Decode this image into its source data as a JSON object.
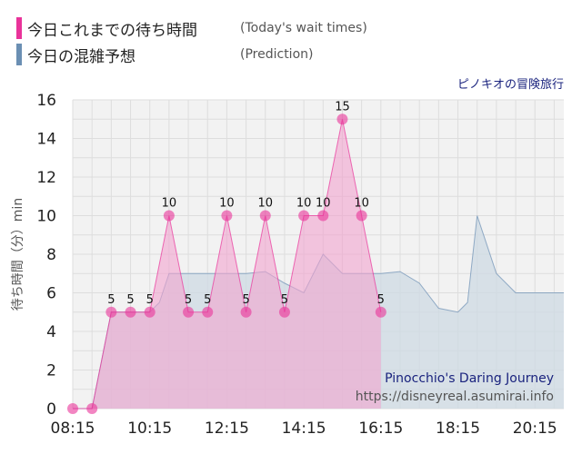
{
  "legend": {
    "actual_label": "今日これまでの待ち時間",
    "actual_sub": "(Today's wait times)",
    "predicted_label": "今日の混雑予想",
    "predicted_sub": "(Prediction)"
  },
  "colors": {
    "actual": "#e9339a",
    "actual_fill": "#f2a3cf",
    "predicted": "#6b8fb3",
    "predicted_fill": "#cdd9e3"
  },
  "attraction_ja": "ピノキオの冒険旅行",
  "credit": {
    "attraction_en": "Pinocchio's Daring Journey",
    "url": "https://disneyreal.asumirai.info"
  },
  "chart_data": {
    "type": "area",
    "ylabel": "待ち時間（分）min",
    "ylim": [
      0,
      16
    ],
    "yticks": [
      "0",
      "2",
      "4",
      "6",
      "8",
      "10",
      "12",
      "14",
      "16"
    ],
    "xlim": [
      "08:15",
      "21:00"
    ],
    "xticks": [
      "08:15",
      "10:15",
      "12:15",
      "14:15",
      "16:15",
      "18:15",
      "20:15"
    ],
    "grid": true,
    "series": [
      {
        "key": "actual",
        "points": [
          {
            "x": "08:15",
            "y": 0
          },
          {
            "x": "08:45",
            "y": 0
          },
          {
            "x": "09:15",
            "y": 5,
            "label": "5"
          },
          {
            "x": "09:45",
            "y": 5,
            "label": "5"
          },
          {
            "x": "10:15",
            "y": 5,
            "label": "5"
          },
          {
            "x": "10:45",
            "y": 10,
            "label": "10"
          },
          {
            "x": "11:15",
            "y": 5,
            "label": "5"
          },
          {
            "x": "11:45",
            "y": 5,
            "label": "5"
          },
          {
            "x": "12:15",
            "y": 10,
            "label": "10"
          },
          {
            "x": "12:45",
            "y": 5,
            "label": "5"
          },
          {
            "x": "13:15",
            "y": 10,
            "label": "10"
          },
          {
            "x": "13:45",
            "y": 5,
            "label": "5"
          },
          {
            "x": "14:15",
            "y": 10,
            "label": "10"
          },
          {
            "x": "14:45",
            "y": 10,
            "label": "10"
          },
          {
            "x": "15:15",
            "y": 15,
            "label": "15"
          },
          {
            "x": "15:45",
            "y": 10,
            "label": "10"
          },
          {
            "x": "16:15",
            "y": 5,
            "label": "5"
          }
        ]
      },
      {
        "key": "predicted",
        "points": [
          {
            "x": "08:15",
            "y": 0
          },
          {
            "x": "08:45",
            "y": 0
          },
          {
            "x": "09:15",
            "y": 5
          },
          {
            "x": "09:45",
            "y": 5
          },
          {
            "x": "10:15",
            "y": 5
          },
          {
            "x": "10:30",
            "y": 5.5
          },
          {
            "x": "10:45",
            "y": 7
          },
          {
            "x": "11:15",
            "y": 7
          },
          {
            "x": "11:45",
            "y": 7
          },
          {
            "x": "12:15",
            "y": 7
          },
          {
            "x": "12:45",
            "y": 7
          },
          {
            "x": "13:15",
            "y": 7.1
          },
          {
            "x": "13:45",
            "y": 6.5
          },
          {
            "x": "14:15",
            "y": 6
          },
          {
            "x": "14:45",
            "y": 8
          },
          {
            "x": "15:15",
            "y": 7
          },
          {
            "x": "15:45",
            "y": 7
          },
          {
            "x": "16:15",
            "y": 7
          },
          {
            "x": "16:45",
            "y": 7.1
          },
          {
            "x": "17:15",
            "y": 6.5
          },
          {
            "x": "17:45",
            "y": 5.2
          },
          {
            "x": "18:15",
            "y": 5
          },
          {
            "x": "18:30",
            "y": 5.5
          },
          {
            "x": "18:45",
            "y": 10
          },
          {
            "x": "19:15",
            "y": 7
          },
          {
            "x": "19:45",
            "y": 6
          },
          {
            "x": "20:15",
            "y": 6
          },
          {
            "x": "20:45",
            "y": 6
          },
          {
            "x": "21:00",
            "y": 6
          }
        ]
      }
    ]
  }
}
